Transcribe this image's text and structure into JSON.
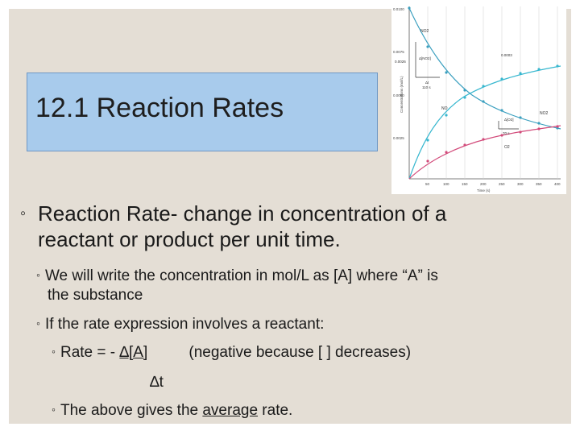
{
  "slide": {
    "title": "12.1 Reaction Rates",
    "bullet_marker": "◦",
    "main_bullet_line1": "Reaction Rate- change in concentration of a",
    "main_bullet_line2": "reactant or product per unit time.",
    "sub1_line1": "We will write the concentration in mol/L as [A] where “A” is",
    "sub1_line2": "the substance",
    "sub2": "If the rate expression involves a reactant:",
    "sub3_prefix": "Rate = - ",
    "sub3_fraction_num": "∆[A]",
    "sub3_note": "(negative because [  ] decreases)",
    "sub3_fraction_den": "∆t",
    "sub4_prefix": "The above gives the ",
    "sub4_underlined": "average",
    "sub4_suffix": " rate."
  },
  "graph": {
    "y_ticks": [
      "0.0100",
      "0.0075",
      "0.0050",
      "0.0025"
    ],
    "x_ticks": [
      "50",
      "100",
      "150",
      "200",
      "250",
      "300",
      "350",
      "400"
    ],
    "ylabel": "Concentrations (mol/L)",
    "xlabel": "Time (s)",
    "curve_labels": [
      "NO2",
      "O2",
      "NO",
      "NO2"
    ],
    "annotations": [
      "0.0026",
      "Δ[NO2]",
      "Δt",
      "110 s",
      "0.0003",
      "Δ[O2]",
      "70 s"
    ],
    "colors": {
      "decay": "#3a9fbf",
      "product": "#37b7cf",
      "o2": "#d24a7a",
      "axis": "#555555"
    }
  }
}
